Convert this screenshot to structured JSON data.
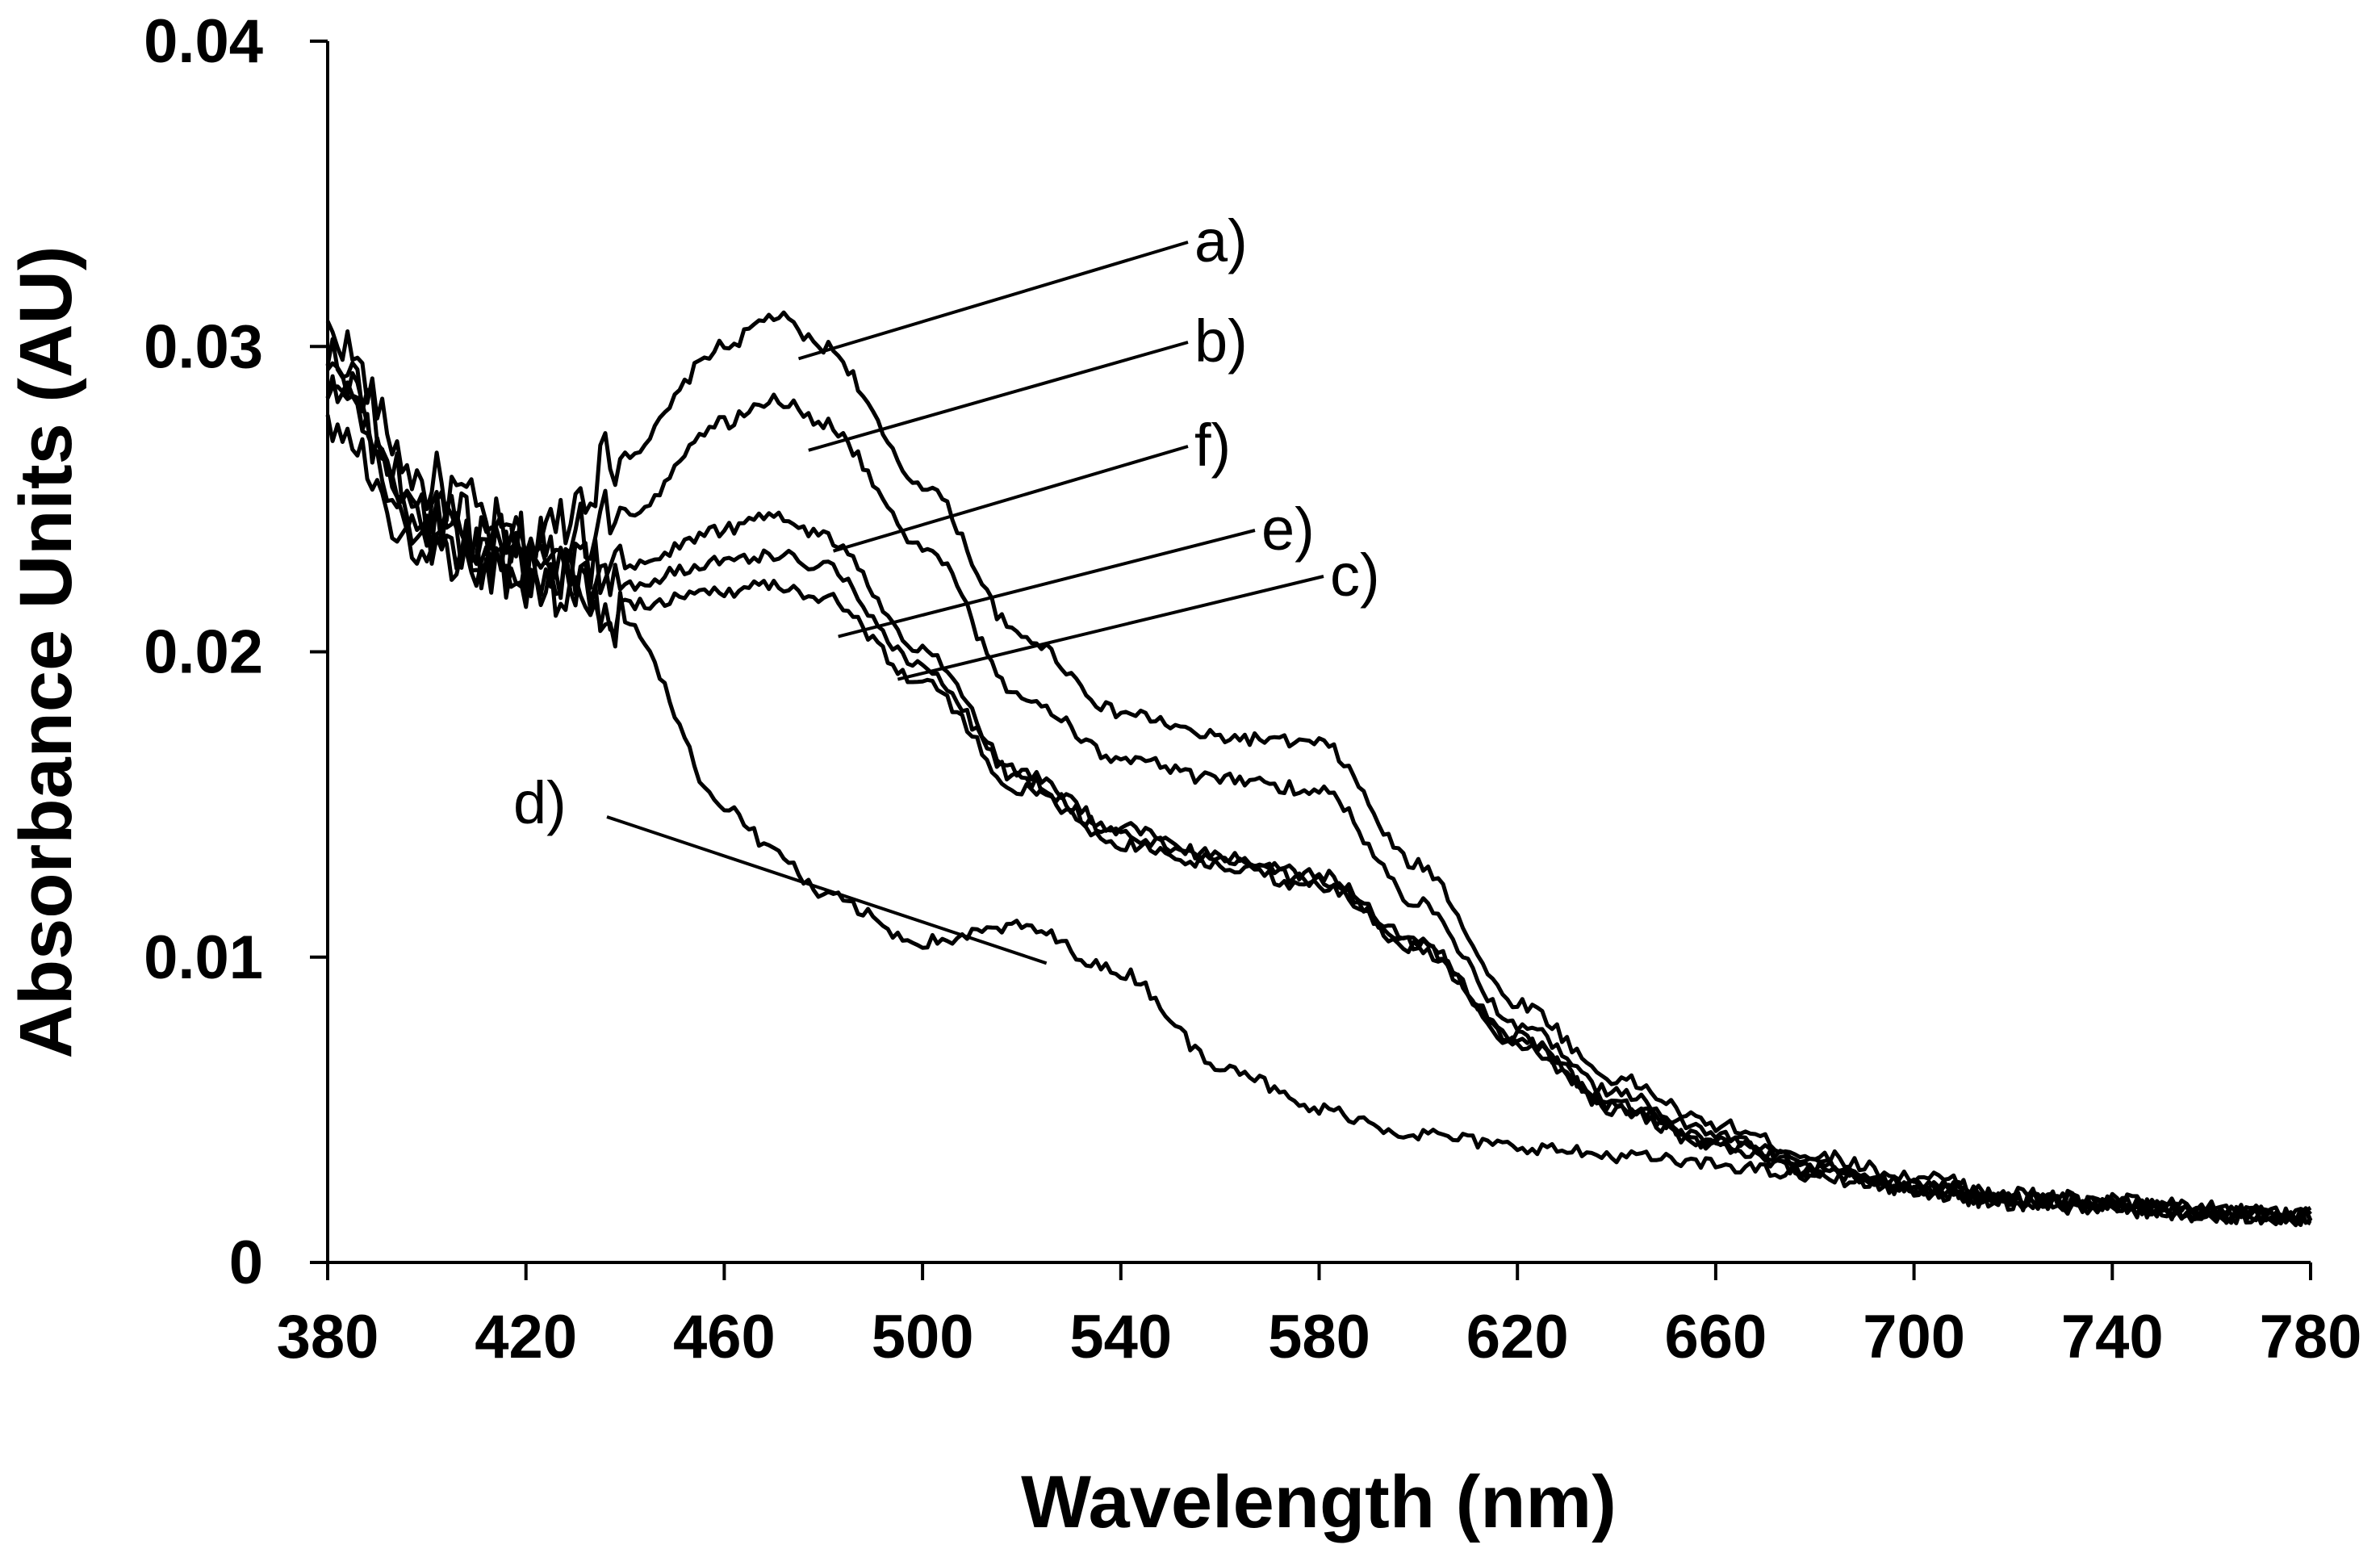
{
  "chart_data": {
    "type": "line",
    "title": "",
    "xlabel": "Wavelength (nm)",
    "ylabel": "Absorbance Units (AU)",
    "xlim": [
      380,
      780
    ],
    "ylim": [
      0,
      0.04
    ],
    "grid": false,
    "x_ticks": [
      380,
      420,
      460,
      500,
      540,
      580,
      620,
      660,
      700,
      740,
      780
    ],
    "x_tick_labels": [
      "380",
      "420",
      "460",
      "500",
      "540",
      "580",
      "620",
      "660",
      "700",
      "740",
      "780"
    ],
    "y_ticks": [
      0,
      0.01,
      0.02,
      0.03,
      0.04
    ],
    "y_tick_labels": [
      "0",
      "0.01",
      "0.02",
      "0.03",
      "0.04"
    ],
    "x": [
      380,
      400,
      420,
      440,
      460,
      470,
      480,
      500,
      520,
      540,
      560,
      580,
      600,
      620,
      640,
      660,
      680,
      700,
      720,
      740,
      760,
      780
    ],
    "series": [
      {
        "name": "a)",
        "values": [
          0.0305,
          0.0255,
          0.0235,
          0.0265,
          0.03,
          0.031,
          0.03,
          0.0255,
          0.0205,
          0.018,
          0.0172,
          0.017,
          0.013,
          0.0085,
          0.006,
          0.0045,
          0.0035,
          0.0028,
          0.0022,
          0.002,
          0.0017,
          0.0015
        ]
      },
      {
        "name": "b)",
        "values": [
          0.03,
          0.0248,
          0.0228,
          0.0245,
          0.0275,
          0.0283,
          0.0275,
          0.0235,
          0.0185,
          0.0165,
          0.0158,
          0.0155,
          0.0118,
          0.0078,
          0.0055,
          0.0042,
          0.0032,
          0.0026,
          0.0021,
          0.0019,
          0.0016,
          0.0015
        ]
      },
      {
        "name": "c)",
        "values": [
          0.0285,
          0.0238,
          0.0222,
          0.0215,
          0.022,
          0.0222,
          0.0218,
          0.019,
          0.0155,
          0.0137,
          0.013,
          0.0123,
          0.0103,
          0.0072,
          0.005,
          0.0038,
          0.003,
          0.0024,
          0.002,
          0.0018,
          0.0016,
          0.0015
        ]
      },
      {
        "name": "d)",
        "values": [
          0.0275,
          0.0232,
          0.0235,
          0.021,
          0.015,
          0.0135,
          0.012,
          0.0105,
          0.011,
          0.0095,
          0.0065,
          0.005,
          0.0042,
          0.0038,
          0.0035,
          0.0032,
          0.0028,
          0.0024,
          0.002,
          0.0018,
          0.0016,
          0.0015
        ]
      },
      {
        "name": "e)",
        "values": [
          0.029,
          0.024,
          0.0225,
          0.0222,
          0.023,
          0.0232,
          0.0228,
          0.0195,
          0.0158,
          0.014,
          0.0132,
          0.0125,
          0.0104,
          0.0073,
          0.0051,
          0.0039,
          0.003,
          0.0024,
          0.002,
          0.0018,
          0.0016,
          0.0015
        ]
      },
      {
        "name": "f)",
        "values": [
          0.0295,
          0.0243,
          0.0228,
          0.0228,
          0.024,
          0.0245,
          0.0238,
          0.02,
          0.016,
          0.0142,
          0.0133,
          0.0127,
          0.0105,
          0.0074,
          0.0052,
          0.004,
          0.0031,
          0.0025,
          0.0021,
          0.0019,
          0.0016,
          0.0015
        ]
      }
    ],
    "annotations": [
      {
        "label": "a)",
        "series": "a)",
        "point": [
          475,
          0.0296
        ]
      },
      {
        "label": "b)",
        "series": "b)",
        "point": [
          477,
          0.0266
        ]
      },
      {
        "label": "f)",
        "series": "f)",
        "point": [
          482,
          0.0233
        ]
      },
      {
        "label": "e)",
        "series": "e)",
        "point": [
          483,
          0.0205
        ]
      },
      {
        "label": "c)",
        "series": "c)",
        "point": [
          495,
          0.0191
        ]
      },
      {
        "label": "d)",
        "series": "d)",
        "point": [
          525,
          0.0098
        ]
      }
    ]
  }
}
